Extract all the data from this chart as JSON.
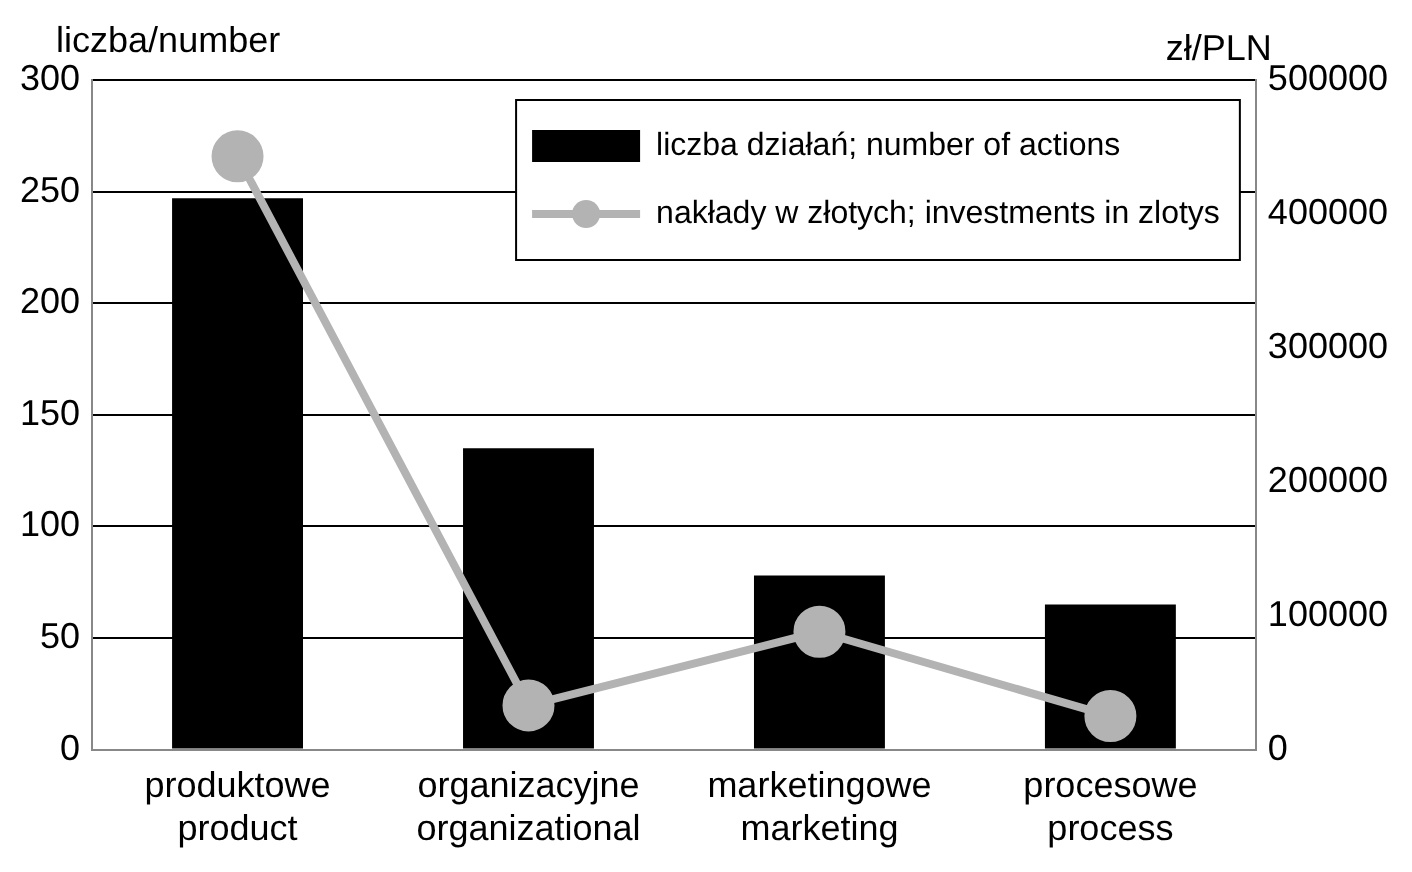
{
  "chart_data": {
    "type": "bar",
    "ylabel": "liczba/number",
    "y2label": "zł/PLN",
    "categories": [
      "produktowe\nproduct",
      "organizacyjne\norganizational",
      "marketingowe\nmarketing",
      "procesowe\nprocess"
    ],
    "series": [
      {
        "name": "liczba działań; number of actions",
        "color": "#000000",
        "values": [
          247,
          135,
          78,
          65
        ]
      },
      {
        "name": "nakłady w złotych; investments in zlotys",
        "type": "line",
        "axis": "y2",
        "color": "#b3b3b3",
        "marker": "circle",
        "values": [
          443000,
          33000,
          88000,
          25000
        ]
      }
    ],
    "ylim": [
      0,
      300
    ],
    "yticks": [
      0,
      50,
      100,
      150,
      200,
      250,
      300
    ],
    "y2lim": [
      0,
      500000
    ],
    "y2ticks": [
      0,
      100000,
      200000,
      300000,
      400000,
      500000
    ],
    "grid": "y",
    "legend": "top right"
  }
}
